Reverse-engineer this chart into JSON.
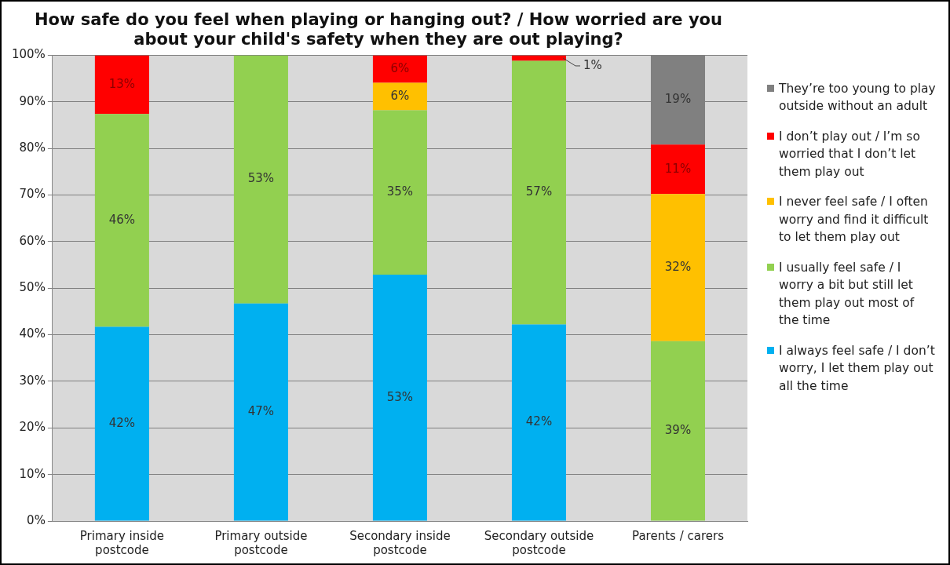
{
  "chart_data": {
    "type": "bar",
    "title": "How safe do you feel when playing or hanging out? / How worried are you about your child's safety when they are out playing?",
    "categories": [
      "Primary inside postcode",
      "Primary outside postcode",
      "Secondary inside postcode",
      "Secondary outside postcode",
      "Parents / carers"
    ],
    "stacked": true,
    "series": [
      {
        "name": "I always feel safe / I don’t worry, I let them play out all the time",
        "color": "#00b0f0",
        "values": [
          41.7,
          46.7,
          52.9,
          42.2,
          null
        ],
        "value_labels": [
          "42%",
          "47%",
          "53%",
          "42%",
          null
        ]
      },
      {
        "name": "I usually feel safe / I worry a bit but still let them play out most of the time",
        "color": "#92d050",
        "values": [
          45.7,
          53.3,
          35.3,
          56.6,
          38.6
        ],
        "value_labels": [
          "46%",
          "53%",
          "35%",
          "57%",
          "39%"
        ]
      },
      {
        "name": "I never feel safe / I often worry and find it difficult to let them play out",
        "color": "#ffc000",
        "values": [
          null,
          null,
          5.9,
          null,
          31.6
        ],
        "value_labels": [
          null,
          null,
          "6%",
          null,
          "32%"
        ]
      },
      {
        "name": "I don’t play out / I’m so worried that I don’t let them play out",
        "color": "#ff0000",
        "values": [
          12.6,
          null,
          5.9,
          1.2,
          10.6
        ],
        "value_labels": [
          "13%",
          null,
          "6%",
          "1%",
          "11%"
        ]
      },
      {
        "name": "They’re too young to play outside without an adult",
        "color": "#808080",
        "values": [
          null,
          null,
          null,
          null,
          19.2
        ],
        "value_labels": [
          null,
          null,
          null,
          null,
          "19%"
        ]
      }
    ],
    "ylim": [
      0,
      100
    ],
    "yticks": [
      {
        "value": 0,
        "label": "0%"
      },
      {
        "value": 10,
        "label": "10%"
      },
      {
        "value": 20,
        "label": "20%"
      },
      {
        "value": 30,
        "label": "30%"
      },
      {
        "value": 40,
        "label": "40%"
      },
      {
        "value": 50,
        "label": "50%"
      },
      {
        "value": 60,
        "label": "60%"
      },
      {
        "value": 70,
        "label": "70%"
      },
      {
        "value": 80,
        "label": "80%"
      },
      {
        "value": 90,
        "label": "90%"
      },
      {
        "value": 100,
        "label": "100%"
      }
    ],
    "grid": "y",
    "legend": "right"
  }
}
